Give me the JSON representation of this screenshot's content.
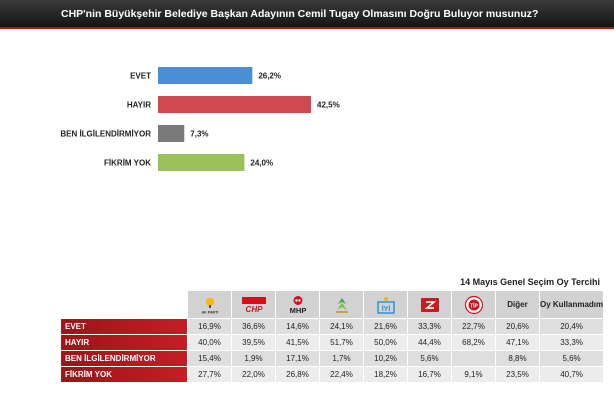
{
  "title": "CHP'nin Büyükşehir Belediye Başkan Adayının Cemil Tugay Olmasını Doğru Buluyor musunuz?",
  "colors": {
    "header_bg": "#1f1f1f",
    "accent_red": "#c1161e"
  },
  "chart_data": {
    "type": "bar",
    "orientation": "horizontal",
    "title": "CHP'nin Büyükşehir Belediye Başkan Adayının Cemil Tugay Olmasını Doğru Buluyor musunuz?",
    "categories": [
      "EVET",
      "HAYIR",
      "BEN İLGİLENDİRMİYOR",
      "FİKRİM YOK"
    ],
    "values": [
      26.2,
      42.5,
      7.3,
      24.0
    ],
    "labels": [
      "26,2%",
      "42,5%",
      "7,3%",
      "24,0%"
    ],
    "colors": [
      "#4a8fd6",
      "#cf4a4f",
      "#7a7a7a",
      "#9cc05a"
    ],
    "xlim": [
      0,
      50
    ],
    "grid": false
  },
  "table": {
    "title": "14 Mayıs Genel Seçim Oy Tercihi",
    "party_icons": [
      "akp-logo-icon",
      "chp-logo-icon",
      "mhp-logo-icon",
      "hdp-logo-icon",
      "iyi-logo-icon",
      "zafer-logo-icon",
      "tip-logo-icon"
    ],
    "logo_text": {
      "akp": "AK PARTİ",
      "chp": "CHP",
      "mhp": "MHP",
      "iyi": "İYİ",
      "tip": "TİP"
    },
    "text_columns": [
      "Diğer",
      "Oy Kullanmadım"
    ],
    "rows": [
      {
        "label": "EVET",
        "values": [
          "16,9%",
          "36,6%",
          "14,6%",
          "24,1%",
          "21,6%",
          "33,3%",
          "22,7%",
          "20,6%",
          "20,4%"
        ]
      },
      {
        "label": "HAYIR",
        "values": [
          "40,0%",
          "39,5%",
          "41,5%",
          "51,7%",
          "50,0%",
          "44,4%",
          "68,2%",
          "47,1%",
          "33,3%"
        ]
      },
      {
        "label": "BEN İLGİLENDİRMİYOR",
        "values": [
          "15,4%",
          "1,9%",
          "17,1%",
          "1,7%",
          "10,2%",
          "5,6%",
          "",
          "8,8%",
          "5,6%"
        ]
      },
      {
        "label": "FİKRİM YOK",
        "values": [
          "27,7%",
          "22,0%",
          "26,8%",
          "22,4%",
          "18,2%",
          "16,7%",
          "9,1%",
          "23,5%",
          "40,7%"
        ]
      }
    ]
  }
}
